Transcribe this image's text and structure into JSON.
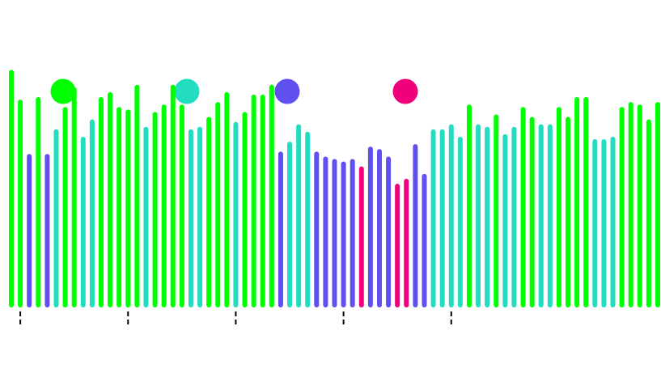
{
  "chart_data": {
    "type": "bar",
    "title": "",
    "xlabel": "",
    "ylabel": "",
    "ylim": [
      0,
      100
    ],
    "legend": {
      "placement": "top-left",
      "entries": [
        {
          "color": "#00ff00"
        },
        {
          "color": "#22ddc0"
        },
        {
          "color": "#6050f0"
        },
        {
          "color": "#f0007a"
        }
      ]
    },
    "x_tick_count": 5,
    "x_tick_indices": [
      1,
      13,
      25,
      37,
      49
    ],
    "bar_count": 73,
    "values": [
      94,
      82,
      60,
      83,
      60,
      70,
      79,
      87,
      67,
      74,
      83,
      85,
      79,
      78,
      88,
      71,
      77,
      80,
      88,
      80,
      70,
      71,
      75,
      81,
      85,
      73,
      77,
      84,
      84,
      88,
      61,
      65,
      72,
      69,
      61,
      59,
      58,
      57,
      58,
      55,
      63,
      62,
      59,
      48,
      50,
      64,
      52,
      70,
      70,
      72,
      67,
      80,
      72,
      71,
      76,
      68,
      71,
      79,
      75,
      72,
      72,
      79,
      75,
      83,
      83,
      66,
      66,
      67,
      79,
      81,
      80,
      74,
      81
    ],
    "categories": [
      0,
      0,
      2,
      0,
      2,
      1,
      0,
      0,
      1,
      1,
      0,
      0,
      0,
      0,
      0,
      1,
      0,
      0,
      0,
      0,
      1,
      1,
      0,
      0,
      0,
      1,
      0,
      0,
      0,
      0,
      2,
      1,
      1,
      1,
      2,
      2,
      2,
      2,
      2,
      3,
      2,
      2,
      2,
      3,
      3,
      2,
      2,
      1,
      1,
      1,
      1,
      0,
      1,
      1,
      0,
      1,
      1,
      0,
      0,
      1,
      1,
      0,
      0,
      0,
      0,
      1,
      1,
      1,
      0,
      0,
      0,
      0,
      0
    ]
  }
}
